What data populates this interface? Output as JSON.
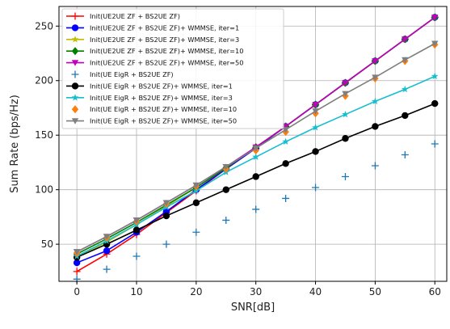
{
  "chart_data": {
    "type": "line",
    "title": "",
    "xlabel": "SNR[dB]",
    "ylabel": "Sum Rate (bps/Hz)",
    "xlim": [
      -3,
      62
    ],
    "ylim": [
      16,
      268
    ],
    "xticks": [
      0,
      10,
      20,
      30,
      40,
      50,
      60
    ],
    "yticks": [
      50,
      100,
      150,
      200,
      250
    ],
    "grid": true,
    "legend_position": "top-left",
    "x": [
      0,
      5,
      10,
      15,
      20,
      25,
      30,
      35,
      40,
      45,
      50,
      55,
      60
    ],
    "series": [
      {
        "name": "Init(UE2UE ZF + BS2UE ZF)",
        "color": "#ff0000",
        "marker": "plus",
        "line": true,
        "values": [
          25,
          41,
          59,
          79,
          99,
          119,
          138,
          158,
          178,
          198,
          218,
          238,
          258
        ]
      },
      {
        "name": "Init(UE2UE ZF + BS2UE ZF)+ WMMSE, iter=1",
        "color": "#0000ff",
        "marker": "circle",
        "line": true,
        "values": [
          33,
          44,
          61,
          80,
          100,
          119,
          138,
          158,
          178,
          198,
          218,
          238,
          258
        ]
      },
      {
        "name": "Init(UE2UE ZF + BS2UE ZF)+ WMMSE, iter=3",
        "color": "#bfbf00",
        "marker": "star",
        "line": true,
        "values": [
          38,
          52,
          68,
          85,
          102,
          120,
          139,
          158,
          178,
          198,
          218,
          238,
          258
        ]
      },
      {
        "name": "Init(UE2UE ZF + BS2UE ZF)+ WMMSE, iter=10",
        "color": "#008000",
        "marker": "diamond",
        "line": true,
        "values": [
          41,
          55,
          70,
          86,
          102,
          120,
          139,
          158,
          178,
          198,
          218,
          238,
          258
        ]
      },
      {
        "name": "Init(UE2UE ZF + BS2UE ZF)+ WMMSE, iter=50",
        "color": "#bf00bf",
        "marker": "triangle-down",
        "line": true,
        "values": [
          43,
          57,
          72,
          88,
          104,
          121,
          139,
          158,
          178,
          198,
          218,
          238,
          258
        ]
      },
      {
        "name": "Init(UE EigR + BS2UE ZF)",
        "color": "#1f77b4",
        "marker": "plus",
        "line": false,
        "values": [
          18,
          27,
          39,
          50,
          61,
          72,
          82,
          92,
          102,
          112,
          122,
          132,
          142
        ]
      },
      {
        "name": "Init(UE EigR + BS2UE ZF)+ WMMSE, iter=1",
        "color": "#000000",
        "marker": "circle",
        "line": true,
        "values": [
          38,
          50,
          63,
          76,
          88,
          100,
          112,
          124,
          135,
          147,
          158,
          168,
          179
        ]
      },
      {
        "name": "Init(UE EigR + BS2UE ZF)+ WMMSE, iter=3",
        "color": "#17becf",
        "marker": "star",
        "line": true,
        "values": [
          39,
          53,
          68,
          84,
          99,
          116,
          130,
          144,
          157,
          169,
          181,
          192,
          204
        ]
      },
      {
        "name": "Init(UE EigR + BS2UE ZF)+ WMMSE, iter=10",
        "color": "#ff7f0e",
        "marker": "diamond",
        "line": false,
        "values": [
          42,
          56,
          71,
          87,
          103,
          119,
          136,
          153,
          170,
          186,
          202,
          218,
          233
        ]
      },
      {
        "name": "Init(UE EigR + BS2UE ZF)+ WMMSE, iter=50",
        "color": "#7f7f7f",
        "marker": "triangle-down",
        "line": true,
        "values": [
          43,
          57,
          72,
          88,
          104,
          121,
          138,
          155,
          172,
          188,
          203,
          219,
          234
        ]
      }
    ]
  }
}
